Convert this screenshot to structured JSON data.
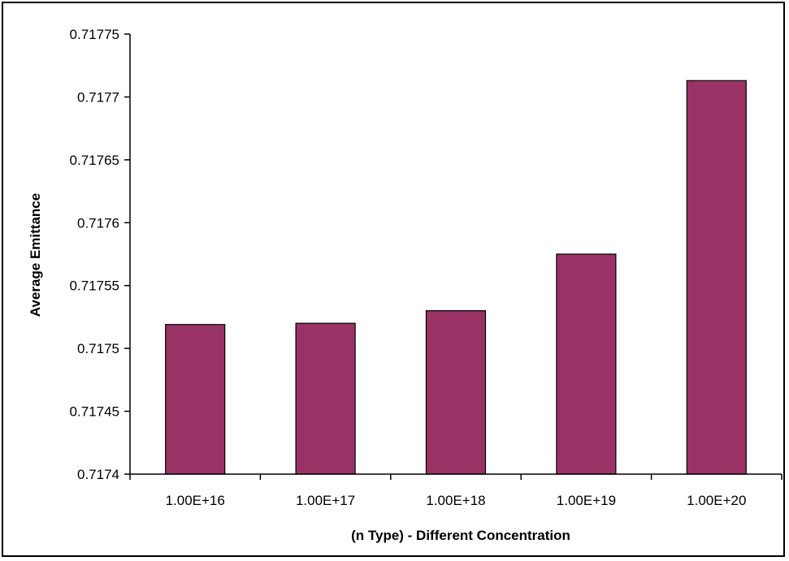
{
  "chart_data": {
    "type": "bar",
    "title": "",
    "xlabel": "(n Type) - Different Concentration",
    "ylabel": "Average Emittance",
    "categories": [
      "1.00E+16",
      "1.00E+17",
      "1.00E+18",
      "1.00E+19",
      "1.00E+20"
    ],
    "values": [
      0.717519,
      0.71752,
      0.71753,
      0.717575,
      0.717713
    ],
    "ylim": [
      0.7174,
      0.71775
    ],
    "yticks": [
      "0.7174",
      "0.71745",
      "0.7175",
      "0.71755",
      "0.7176",
      "0.71765",
      "0.7177",
      "0.71775"
    ],
    "ytick_values": [
      0.7174,
      0.71745,
      0.7175,
      0.71755,
      0.7176,
      0.71765,
      0.7177,
      0.71775
    ],
    "grid": false,
    "legend": "none",
    "bar_color": "#993366"
  }
}
